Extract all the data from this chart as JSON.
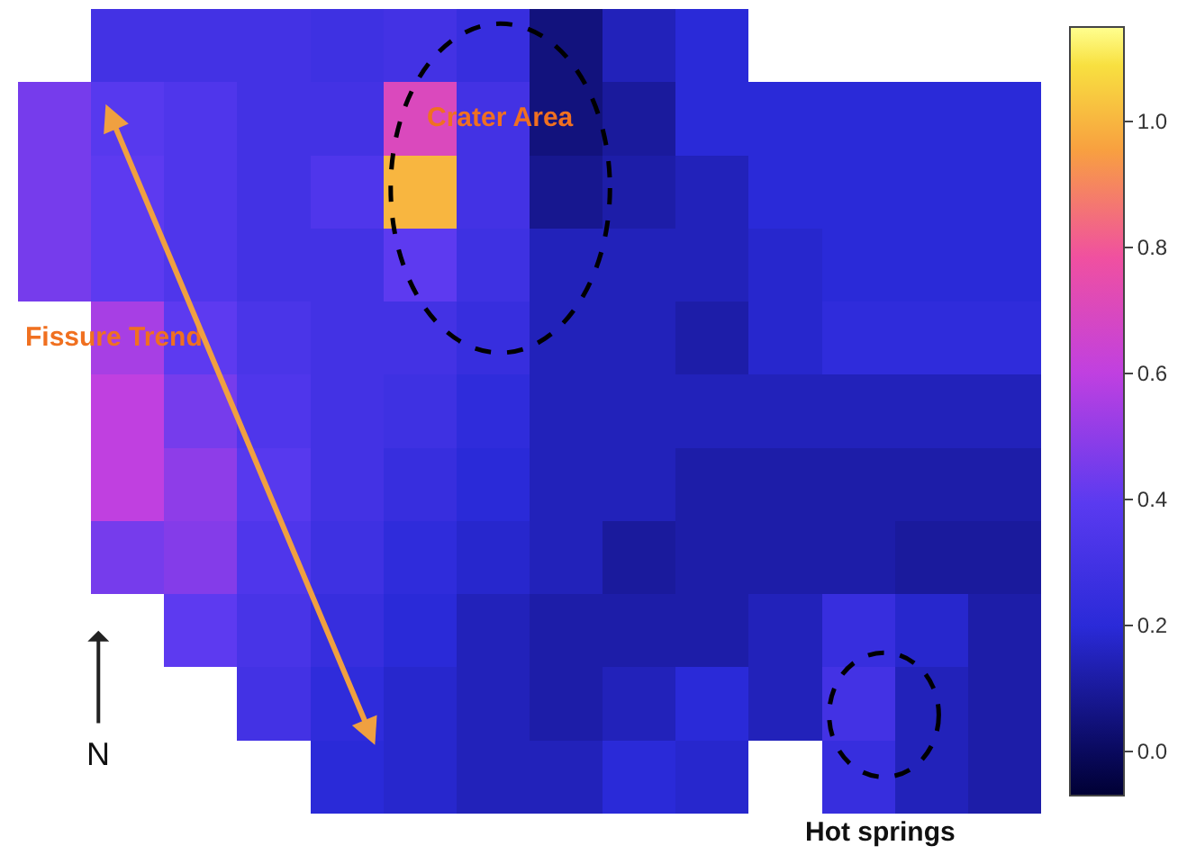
{
  "chart_data": {
    "type": "heatmap",
    "categories": [
      null,
      null,
      null,
      null,
      null,
      null,
      null,
      null,
      null,
      null,
      null,
      null,
      null,
      null
    ],
    "y_categories": [
      null,
      null,
      null,
      null,
      null,
      null,
      null,
      null,
      null,
      null,
      null
    ],
    "cells": [
      [
        null,
        0.3,
        0.3,
        0.3,
        0.28,
        0.3,
        0.25,
        0.05,
        0.15,
        0.2,
        null,
        null,
        null,
        null
      ],
      [
        0.45,
        0.38,
        0.35,
        0.3,
        0.3,
        0.7,
        0.3,
        0.05,
        0.1,
        0.2,
        0.2,
        0.2,
        0.2,
        0.2
      ],
      [
        0.45,
        0.4,
        0.35,
        0.3,
        0.35,
        1.0,
        0.3,
        0.08,
        0.12,
        0.15,
        0.2,
        0.2,
        0.2,
        0.2
      ],
      [
        0.45,
        0.4,
        0.35,
        0.3,
        0.3,
        0.4,
        0.28,
        0.15,
        0.15,
        0.15,
        0.18,
        0.2,
        0.2,
        0.2
      ],
      [
        null,
        0.55,
        0.4,
        0.33,
        0.3,
        0.3,
        0.25,
        0.15,
        0.15,
        0.12,
        0.18,
        0.22,
        0.22,
        0.22
      ],
      [
        null,
        0.6,
        0.45,
        0.35,
        0.3,
        0.28,
        0.22,
        0.15,
        0.15,
        0.15,
        0.15,
        0.15,
        0.15,
        0.15
      ],
      [
        null,
        0.6,
        0.5,
        0.38,
        0.3,
        0.25,
        0.2,
        0.15,
        0.15,
        0.12,
        0.12,
        0.12,
        0.12,
        0.12
      ],
      [
        null,
        0.45,
        0.48,
        0.35,
        0.28,
        0.22,
        0.18,
        0.15,
        0.1,
        0.12,
        0.12,
        0.12,
        0.1,
        0.1
      ],
      [
        null,
        null,
        0.4,
        0.32,
        0.25,
        0.2,
        0.15,
        0.12,
        0.12,
        0.12,
        0.15,
        0.25,
        0.18,
        0.12
      ],
      [
        null,
        null,
        null,
        0.3,
        0.22,
        0.18,
        0.15,
        0.12,
        0.15,
        0.2,
        0.15,
        0.3,
        0.15,
        0.12
      ],
      [
        null,
        null,
        null,
        null,
        0.2,
        0.18,
        0.15,
        0.15,
        0.2,
        0.18,
        null,
        0.25,
        0.15,
        0.12
      ]
    ],
    "clim": [
      -0.07,
      1.15
    ],
    "cticks": [
      {
        "value": 0,
        "label": "0.0"
      },
      0.2,
      0.4,
      0.6,
      0.8,
      {
        "value": 1,
        "label": "1.0"
      }
    ],
    "annotations": [
      "Crater Area",
      "Fissure Trend",
      "Hot springs",
      "N"
    ]
  }
}
